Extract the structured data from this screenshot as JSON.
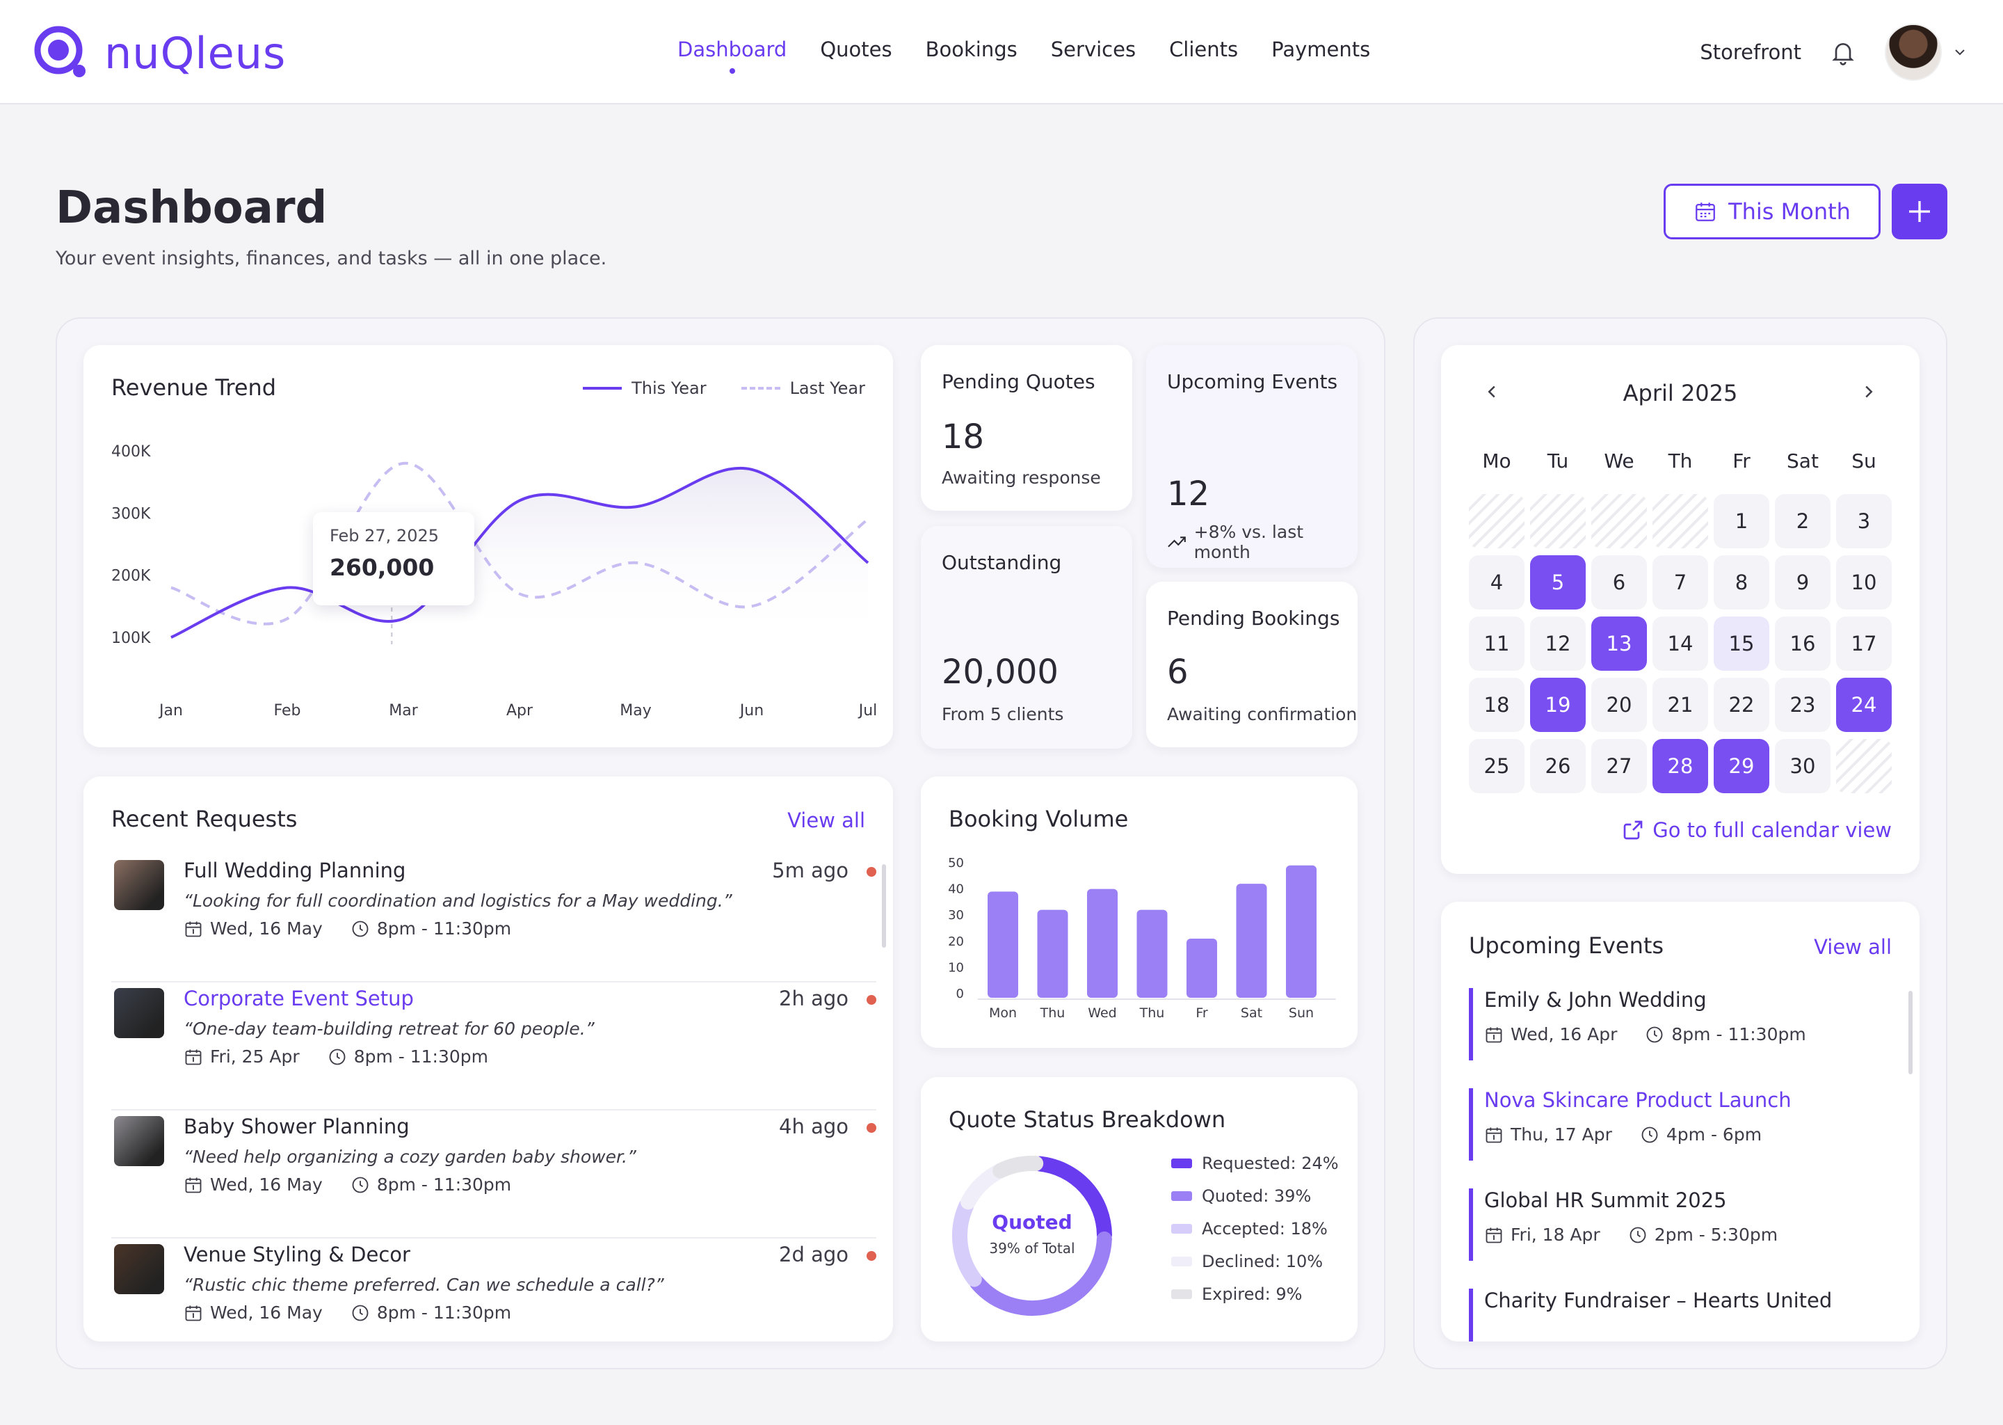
{
  "app": {
    "brand": "nuQleus"
  },
  "nav": {
    "items": [
      {
        "label": "Dashboard",
        "active": true
      },
      {
        "label": "Quotes"
      },
      {
        "label": "Bookings"
      },
      {
        "label": "Services"
      },
      {
        "label": "Clients"
      },
      {
        "label": "Payments"
      }
    ],
    "storefront": "Storefront"
  },
  "header": {
    "title": "Dashboard",
    "subtitle": "Your event insights, finances, and tasks — all in one place.",
    "period_label": "This Month"
  },
  "colors": {
    "accent": "#6a3cf0",
    "accent_light": "#ece8fb",
    "unread": "#e0614f"
  },
  "revenue": {
    "title": "Revenue Trend",
    "legend_this": "This Year",
    "legend_last": "Last Year",
    "tooltip": {
      "date": "Feb 27, 2025",
      "value": "260,000"
    },
    "chart_data": {
      "type": "line",
      "x": [
        "Jan",
        "Feb",
        "Mar",
        "Apr",
        "May",
        "Jun",
        "Jul"
      ],
      "yticks": [
        "400K",
        "300K",
        "200K",
        "100K"
      ],
      "ylim": [
        100000,
        400000
      ],
      "series": [
        {
          "name": "This Year",
          "values": [
            100000,
            180000,
            130000,
            320000,
            310000,
            370000,
            220000
          ]
        },
        {
          "name": "Last Year",
          "values": [
            180000,
            130000,
            380000,
            170000,
            220000,
            150000,
            290000
          ]
        }
      ]
    }
  },
  "stats": {
    "pending_quotes": {
      "title": "Pending Quotes",
      "value": "18",
      "sub": "Awaiting response"
    },
    "upcoming_events": {
      "title": "Upcoming Events",
      "value": "12",
      "sub": "+8% vs. last month"
    },
    "outstanding": {
      "title": "Outstanding",
      "value": "20,000",
      "sub": "From 5 clients"
    },
    "pending_bookings": {
      "title": "Pending Bookings",
      "value": "6",
      "sub": "Awaiting confirmation"
    }
  },
  "requests": {
    "title": "Recent Requests",
    "view_all": "View all",
    "items": [
      {
        "title": "Full Wedding Planning",
        "quote": "“Looking for full coordination and logistics for a May wedding.”",
        "date": "Wed, 16 May",
        "time": "8pm - 11:30pm",
        "ago": "5m ago",
        "thumb": "#8a6e62"
      },
      {
        "title": "Corporate Event Setup",
        "quote": "“One-day team-building retreat for 60 people.”",
        "date": "Fri, 25 Apr",
        "time": "8pm - 11:30pm",
        "ago": "2h ago",
        "thumb": "#3b3f4a"
      },
      {
        "title": "Baby Shower Planning",
        "quote": "“Need help organizing a cozy garden baby shower.”",
        "date": "Wed, 16 May",
        "time": "8pm - 11:30pm",
        "ago": "4h ago",
        "thumb": "#8c8a90"
      },
      {
        "title": "Venue Styling & Decor",
        "quote": "“Rustic chic theme preferred. Can we schedule a call?”",
        "date": "Wed, 16 May",
        "time": "8pm - 11:30pm",
        "ago": "2d ago",
        "thumb": "#4a3528"
      }
    ]
  },
  "booking_volume": {
    "title": "Booking Volume",
    "chart_data": {
      "type": "bar",
      "categories": [
        "Mon",
        "Thu",
        "Wed",
        "Thu",
        "Fr",
        "Sat",
        "Sun"
      ],
      "values": [
        39,
        32,
        40,
        32,
        21,
        42,
        49
      ],
      "yticks": [
        "50",
        "40",
        "30",
        "20",
        "10",
        "0"
      ],
      "ylim": [
        0,
        50
      ]
    }
  },
  "quote_status": {
    "title": "Quote Status Breakdown",
    "center_label": "Quoted",
    "center_sub": "39% of Total",
    "chart_data": {
      "type": "pie",
      "slices": [
        {
          "label": "Requested: 24%",
          "value": 24,
          "color": "#6a3cf0"
        },
        {
          "label": "Quoted: 39%",
          "value": 39,
          "color": "#9b80f5"
        },
        {
          "label": "Accepted: 18%",
          "value": 18,
          "color": "#d6cdfa"
        },
        {
          "label": "Declined: 10%",
          "value": 10,
          "color": "#f0eef8"
        },
        {
          "label": "Expired: 9%",
          "value": 9,
          "color": "#e3e3e8"
        }
      ]
    }
  },
  "calendar": {
    "month": "April 2025",
    "weekdays": [
      "Mo",
      "Tu",
      "We",
      "Th",
      "Fr",
      "Sat",
      "Su"
    ],
    "link": "Go to full calendar view"
  },
  "events": {
    "title": "Upcoming Events",
    "view_all": "View all",
    "items": [
      {
        "title": "Emily & John Wedding",
        "date": "Wed, 16 Apr",
        "time": "8pm - 11:30pm"
      },
      {
        "title": "Nova Skincare Product Launch",
        "date": "Thu, 17 Apr",
        "time": "4pm - 6pm",
        "link": true
      },
      {
        "title": "Global HR Summit 2025",
        "date": "Fri, 18 Apr",
        "time": "2pm - 5:30pm"
      },
      {
        "title": "Charity Fundraiser – Hearts United",
        "date": "",
        "time": ""
      }
    ]
  }
}
